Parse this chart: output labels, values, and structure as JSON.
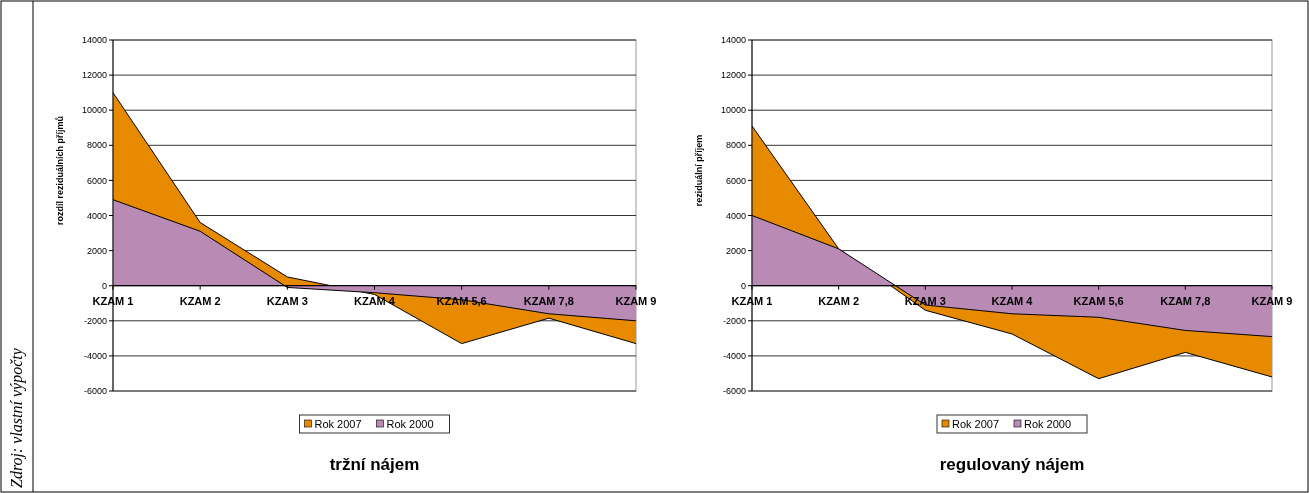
{
  "chart_data": [
    {
      "type": "area",
      "title": "tržní nájem",
      "ylabel": "rozdíl reziduálních příjmů",
      "categories": [
        "KZAM 1",
        "KZAM 2",
        "KZAM 3",
        "KZAM 4",
        "KZAM 5,6",
        "KZAM 7,8",
        "KZAM 9"
      ],
      "series": [
        {
          "name": "Rok 2007",
          "color": "#e88a00",
          "values": [
            11000,
            3600,
            500,
            -500,
            -3300,
            -1850,
            -3300
          ]
        },
        {
          "name": "Rok 2000",
          "color": "#b88ab4",
          "values": [
            4900,
            3100,
            -100,
            -400,
            -800,
            -1600,
            -2000
          ]
        }
      ],
      "ylim": [
        -6000,
        14000
      ],
      "yticks": [
        -6000,
        -4000,
        -2000,
        0,
        2000,
        4000,
        6000,
        8000,
        10000,
        12000,
        14000
      ],
      "grid": "y",
      "legend": "bottom",
      "annotations": [
        "Zdroj: vlastní výpočty"
      ]
    },
    {
      "type": "area",
      "title": "regulovaný nájem",
      "ylabel": "reziduální příjem",
      "categories": [
        "KZAM 1",
        "KZAM 2",
        "KZAM 3",
        "KZAM 4",
        "KZAM 5,6",
        "KZAM 7,8",
        "KZAM 9"
      ],
      "series": [
        {
          "name": "Rok 2007",
          "color": "#e88a00",
          "values": [
            9100,
            2100,
            -1400,
            -2750,
            -5300,
            -3800,
            -5200
          ]
        },
        {
          "name": "Rok 2000",
          "color": "#b88ab4",
          "values": [
            4000,
            2100,
            -1100,
            -1600,
            -1800,
            -2550,
            -2900
          ]
        }
      ],
      "ylim": [
        -6000,
        14000
      ],
      "yticks": [
        -6000,
        -4000,
        -2000,
        0,
        2000,
        4000,
        6000,
        8000,
        10000,
        12000,
        14000
      ],
      "grid": "y",
      "legend": "bottom"
    }
  ]
}
